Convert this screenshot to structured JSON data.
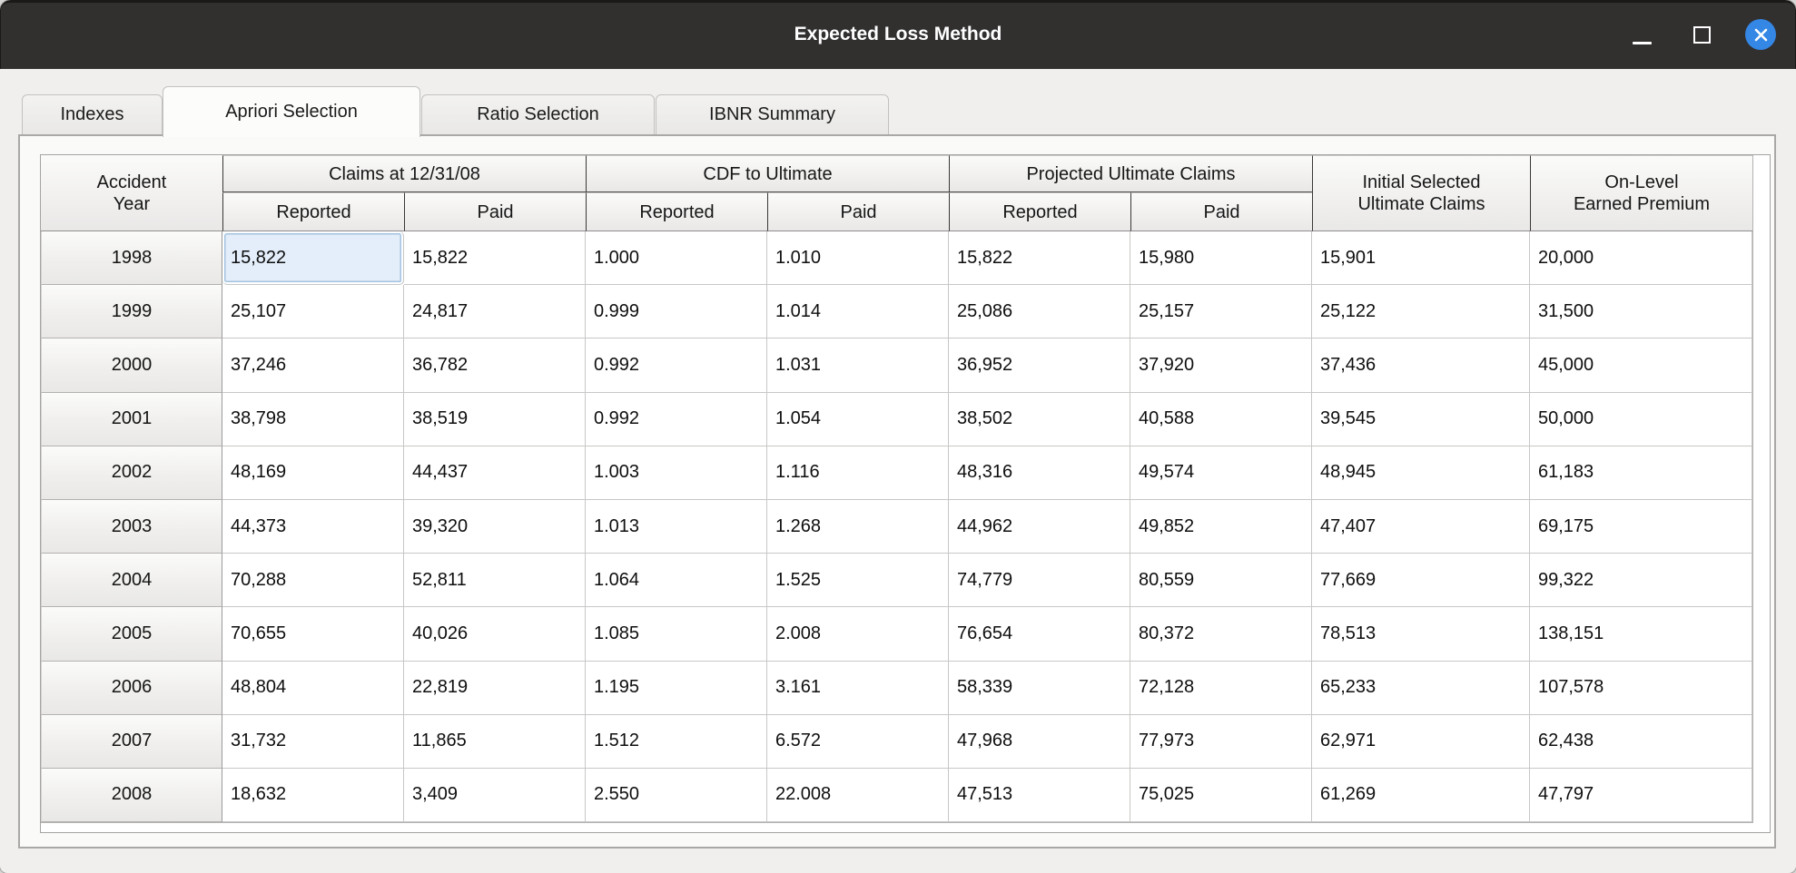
{
  "window": {
    "title": "Expected Loss Method"
  },
  "tabs": [
    {
      "label": "Indexes",
      "active": false
    },
    {
      "label": "Apriori Selection",
      "active": true
    },
    {
      "label": "Ratio Selection",
      "active": false
    },
    {
      "label": "IBNR Summary",
      "active": false
    }
  ],
  "table": {
    "corner_header": {
      "line1": "Accident",
      "line2": "Year"
    },
    "column_groups": [
      {
        "label": "Claims at 12/31/08",
        "subcolumns": [
          "Reported",
          "Paid"
        ]
      },
      {
        "label": "CDF to Ultimate",
        "subcolumns": [
          "Reported",
          "Paid"
        ]
      },
      {
        "label": "Projected Ultimate Claims",
        "subcolumns": [
          "Reported",
          "Paid"
        ]
      }
    ],
    "tall_headers": [
      {
        "line1": "Initial Selected",
        "line2": "Ultimate Claims"
      },
      {
        "line1": "On-Level",
        "line2": "Earned Premium"
      }
    ],
    "rows": [
      {
        "year": "1998",
        "values": [
          "15,822",
          "15,822",
          "1.000",
          "1.010",
          "15,822",
          "15,980",
          "15,901",
          "20,000"
        ]
      },
      {
        "year": "1999",
        "values": [
          "25,107",
          "24,817",
          "0.999",
          "1.014",
          "25,086",
          "25,157",
          "25,122",
          "31,500"
        ]
      },
      {
        "year": "2000",
        "values": [
          "37,246",
          "36,782",
          "0.992",
          "1.031",
          "36,952",
          "37,920",
          "37,436",
          "45,000"
        ]
      },
      {
        "year": "2001",
        "values": [
          "38,798",
          "38,519",
          "0.992",
          "1.054",
          "38,502",
          "40,588",
          "39,545",
          "50,000"
        ]
      },
      {
        "year": "2002",
        "values": [
          "48,169",
          "44,437",
          "1.003",
          "1.116",
          "48,316",
          "49,574",
          "48,945",
          "61,183"
        ]
      },
      {
        "year": "2003",
        "values": [
          "44,373",
          "39,320",
          "1.013",
          "1.268",
          "44,962",
          "49,852",
          "47,407",
          "69,175"
        ]
      },
      {
        "year": "2004",
        "values": [
          "70,288",
          "52,811",
          "1.064",
          "1.525",
          "74,779",
          "80,559",
          "77,669",
          "99,322"
        ]
      },
      {
        "year": "2005",
        "values": [
          "70,655",
          "40,026",
          "1.085",
          "2.008",
          "76,654",
          "80,372",
          "78,513",
          "138,151"
        ]
      },
      {
        "year": "2006",
        "values": [
          "48,804",
          "22,819",
          "1.195",
          "3.161",
          "58,339",
          "72,128",
          "65,233",
          "107,578"
        ]
      },
      {
        "year": "2007",
        "values": [
          "31,732",
          "11,865",
          "1.512",
          "6.572",
          "47,968",
          "77,973",
          "62,971",
          "62,438"
        ]
      },
      {
        "year": "2008",
        "values": [
          "18,632",
          "3,409",
          "2.550",
          "22.008",
          "47,513",
          "75,025",
          "61,269",
          "47,797"
        ]
      }
    ],
    "selected_cell": {
      "row": 0,
      "col": 0
    }
  },
  "colors": {
    "titlebar": "#322f2f",
    "close_button": "#3487e4",
    "selected_cell_bg": "#e4eefa",
    "selected_cell_border": "#a3c3e0"
  }
}
